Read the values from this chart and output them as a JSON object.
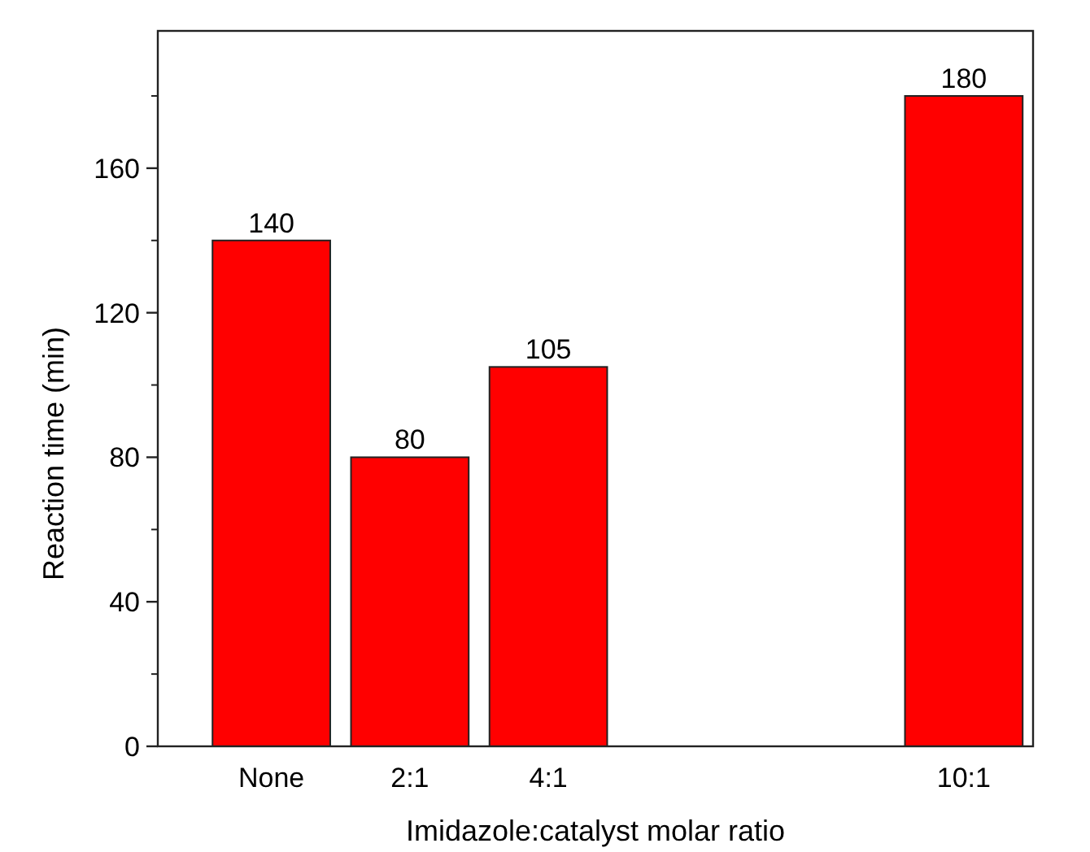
{
  "chart_data": {
    "type": "bar",
    "xlabel": "Imidazole:catalyst molar ratio",
    "ylabel": "Reaction time (min)",
    "categories": [
      "None",
      "2:1",
      "4:1",
      null,
      null,
      "10:1"
    ],
    "values": [
      140,
      80,
      105,
      null,
      null,
      180
    ],
    "color": "#ff0000",
    "data_labels": true,
    "ylim": [
      0,
      198
    ],
    "yticks": [
      0,
      40,
      80,
      120,
      160
    ],
    "grid": false
  }
}
